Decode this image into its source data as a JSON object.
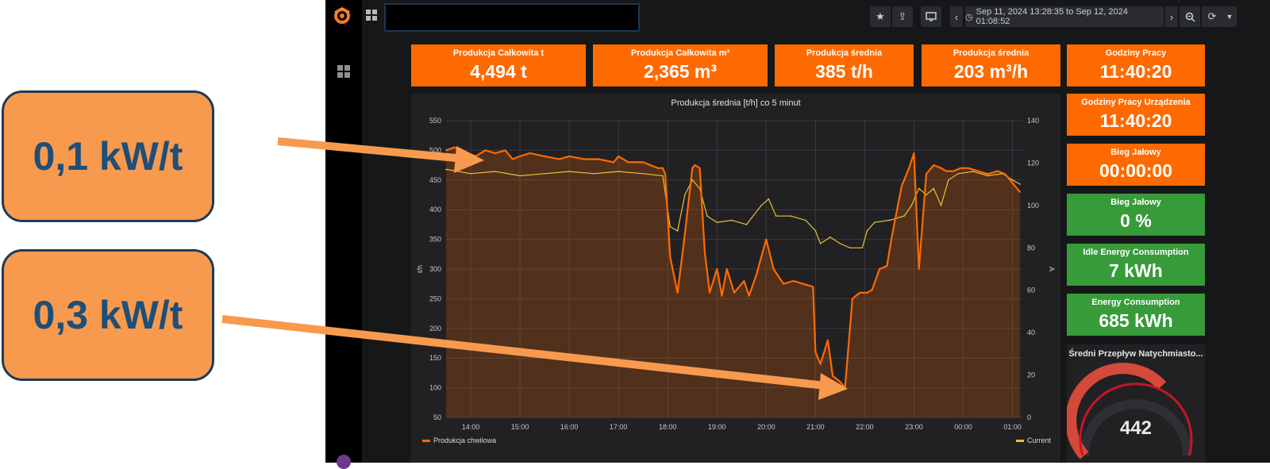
{
  "callouts": [
    {
      "text": "0,1 kW/t"
    },
    {
      "text": "0,3 kW/t"
    }
  ],
  "topbar": {
    "time_range": "Sep 11, 2024 13:28:35 to Sep 12, 2024 01:08:52",
    "icons": [
      "grafana-logo-icon",
      "dashboards-icon",
      "star-icon",
      "share-icon",
      "tv-mode-icon",
      "chevron-left-icon",
      "clock-icon",
      "chevron-right-icon",
      "zoom-out-icon",
      "refresh-icon",
      "chevron-down-icon"
    ]
  },
  "stats_top": [
    {
      "title": "Produkcja Całkowita t",
      "value": "4,494 t"
    },
    {
      "title": "Produkcja Całkowita m³",
      "value": "2,365 m³"
    },
    {
      "title": "Produkcja średnia",
      "value": "385 t/h"
    },
    {
      "title": "Produkcja średnia",
      "value": "203 m³/h"
    },
    {
      "title": "Godziny Pracy",
      "value": "11:40:20"
    }
  ],
  "stats_side": [
    {
      "title": "Godziny Pracy Urządzenia",
      "value": "11:40:20",
      "color": "#ff6a00"
    },
    {
      "title": "Bieg Jałowy",
      "value": "00:00:00",
      "color": "#ff6a00"
    },
    {
      "title": "Bieg Jałowy",
      "value": "0 %",
      "color": "#379b3a"
    },
    {
      "title": "Idle Energy Consumption",
      "value": "7 kWh",
      "color": "#379b3a"
    },
    {
      "title": "Energy Consumption",
      "value": "685 kWh",
      "color": "#379b3a"
    }
  ],
  "gauge": {
    "title": "Średni Przepływ Natychmiasto...",
    "value": "442"
  },
  "chart_data": {
    "type": "line",
    "title": "Produkcja średnia [t/h] co 5 minut",
    "ylabel": "t/h",
    "y2label": "A",
    "ylim": [
      50,
      550
    ],
    "y2lim": [
      0,
      140
    ],
    "y_ticks": [
      "550",
      "500",
      "450",
      "400",
      "350",
      "300",
      "250",
      "200",
      "150",
      "100",
      "50"
    ],
    "y2_ticks": [
      "140",
      "120",
      "100",
      "80",
      "60",
      "40",
      "20",
      "0"
    ],
    "x_ticks": [
      "14:00",
      "15:00",
      "16:00",
      "17:00",
      "18:00",
      "19:00",
      "20:00",
      "21:00",
      "22:00",
      "23:00",
      "00:00",
      "01:00"
    ],
    "legend": "bottom",
    "colors": {
      "primary": "#ff6a00",
      "secondary": "#e5c23a"
    },
    "series": [
      {
        "name": "Produkcja chwilowa",
        "axis": "left",
        "x": [
          13.5,
          13.67,
          13.8,
          13.95,
          14.1,
          14.3,
          14.5,
          14.7,
          14.85,
          15.0,
          15.2,
          15.5,
          15.8,
          16.0,
          16.3,
          16.6,
          16.9,
          17.0,
          17.2,
          17.5,
          17.8,
          17.9,
          17.95,
          18.05,
          18.2,
          18.35,
          18.5,
          18.55,
          18.65,
          18.75,
          18.85,
          19.0,
          19.1,
          19.2,
          19.35,
          19.55,
          19.65,
          19.8,
          20.0,
          20.15,
          20.35,
          20.55,
          20.75,
          20.95,
          21.0,
          21.1,
          21.25,
          21.35,
          21.5,
          21.6,
          21.75,
          21.9,
          22.05,
          22.15,
          22.3,
          22.45,
          22.55,
          22.75,
          22.9,
          23.0,
          23.1,
          23.25,
          23.4,
          23.55,
          23.65,
          23.8,
          23.95,
          24.1,
          24.3,
          24.5,
          24.7,
          24.85,
          25.0,
          25.15
        ],
        "y": [
          500,
          505,
          500,
          495,
          490,
          500,
          495,
          500,
          485,
          490,
          495,
          490,
          485,
          490,
          485,
          485,
          480,
          490,
          480,
          480,
          470,
          470,
          460,
          320,
          260,
          360,
          470,
          475,
          470,
          330,
          260,
          300,
          255,
          300,
          260,
          280,
          255,
          290,
          350,
          300,
          275,
          280,
          275,
          270,
          160,
          140,
          180,
          120,
          110,
          100,
          250,
          260,
          260,
          265,
          300,
          305,
          355,
          440,
          470,
          495,
          300,
          460,
          475,
          470,
          465,
          465,
          470,
          470,
          465,
          460,
          465,
          460,
          445,
          430
        ],
        "values": [
          500,
          505,
          500,
          495,
          490,
          500,
          495,
          500,
          485,
          490,
          495,
          490,
          485,
          490,
          485,
          485,
          480,
          490,
          480,
          480,
          470,
          470,
          460,
          320,
          260,
          360,
          470,
          475,
          470,
          330,
          260,
          300,
          255,
          300,
          260,
          280,
          255,
          290,
          350,
          300,
          275,
          280,
          275,
          270,
          160,
          140,
          180,
          120,
          110,
          100,
          250,
          260,
          260,
          265,
          300,
          305,
          355,
          440,
          470,
          495,
          300,
          460,
          475,
          470,
          465,
          465,
          470,
          470,
          465,
          460,
          465,
          460,
          445,
          430
        ]
      },
      {
        "name": "Current",
        "axis": "right",
        "x": [
          13.5,
          14.0,
          14.5,
          15.0,
          15.5,
          16.0,
          16.5,
          17.0,
          17.5,
          17.9,
          18.05,
          18.2,
          18.35,
          18.5,
          18.65,
          18.8,
          19.0,
          19.3,
          19.6,
          19.9,
          20.05,
          20.2,
          20.5,
          20.8,
          21.0,
          21.1,
          21.3,
          21.5,
          21.7,
          21.95,
          22.05,
          22.2,
          22.5,
          22.8,
          22.95,
          23.1,
          23.25,
          23.4,
          23.55,
          23.7,
          23.9,
          24.2,
          24.5,
          24.8,
          25.0,
          25.15
        ],
        "y": [
          117,
          115,
          116,
          114,
          115,
          116,
          115,
          116,
          115,
          114,
          90,
          88,
          105,
          112,
          108,
          95,
          92,
          93,
          91,
          100,
          103,
          95,
          95,
          93,
          88,
          82,
          85,
          82,
          80,
          80,
          88,
          92,
          93,
          95,
          100,
          108,
          105,
          108,
          100,
          112,
          115,
          116,
          114,
          115,
          112,
          110
        ],
        "values": [
          117,
          115,
          116,
          114,
          115,
          116,
          115,
          116,
          115,
          114,
          90,
          88,
          105,
          112,
          108,
          95,
          92,
          93,
          91,
          100,
          103,
          95,
          95,
          93,
          88,
          82,
          85,
          82,
          80,
          80,
          88,
          92,
          93,
          95,
          100,
          108,
          105,
          108,
          100,
          112,
          115,
          116,
          114,
          115,
          112,
          110
        ]
      }
    ]
  }
}
